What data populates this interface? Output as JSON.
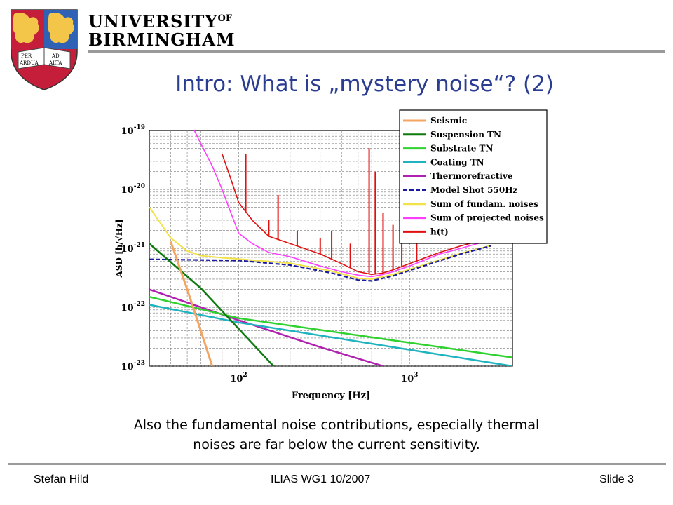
{
  "header": {
    "logo_line1": "UNIVERSITY",
    "logo_of": "OF",
    "logo_line2": "BIRMINGHAM",
    "motto_left_top": "PER",
    "motto_left_bottom": "ARDUA",
    "motto_right_top": "AD",
    "motto_right_bottom": "ALTA"
  },
  "slide": {
    "title": "Intro: What is „mystery noise“? (2)",
    "caption_line1": "Also the fundamental noise contributions, especially thermal",
    "caption_line2": "noises are far below the current sensitivity."
  },
  "footer": {
    "author": "Stefan Hild",
    "event": "ILIAS WG1 10/2007",
    "slide_number": "Slide 3"
  },
  "colors": {
    "title": "#2b3d91",
    "seismic": "#f5a562",
    "suspension": "#0e7a0e",
    "substrate": "#2fd22f",
    "coating": "#1fb3c0",
    "thermorefractive": "#b020b0",
    "shot": "#1a1aa0",
    "sum_fundamental": "#f2e24a",
    "sum_projected": "#ff3dff",
    "ht": "#e01010"
  },
  "chart_data": {
    "type": "line",
    "xlabel": "Frequency [Hz]",
    "ylabel": "ASD [h/√Hz]",
    "x_scale": "log",
    "y_scale": "log",
    "xlim": [
      30,
      4000
    ],
    "ylim": [
      1e-23,
      1e-19
    ],
    "x_ticks": [
      {
        "value": 100,
        "base": "10",
        "exp": "2"
      },
      {
        "value": 1000,
        "base": "10",
        "exp": "3"
      }
    ],
    "y_ticks": [
      {
        "value": 1e-19,
        "base": "10",
        "exp": "-19"
      },
      {
        "value": 1e-20,
        "base": "10",
        "exp": "-20"
      },
      {
        "value": 1e-21,
        "base": "10",
        "exp": "-21"
      },
      {
        "value": 1e-22,
        "base": "10",
        "exp": "-22"
      },
      {
        "value": 1e-23,
        "base": "10",
        "exp": "-23"
      }
    ],
    "grid": true,
    "legend_position": "top-right",
    "series": [
      {
        "name": "Seismic",
        "color": "#f5a562",
        "style": "solid",
        "x": [
          40,
          50,
          60,
          70
        ],
        "y": [
          1.3e-21,
          2e-22,
          4e-23,
          1e-23
        ]
      },
      {
        "name": "Suspension TN",
        "color": "#0e7a0e",
        "style": "solid",
        "x": [
          30,
          60,
          100,
          160
        ],
        "y": [
          1.2e-21,
          2.1e-22,
          4.3e-23,
          1e-23
        ]
      },
      {
        "name": "Substrate TN",
        "color": "#2fd22f",
        "style": "solid",
        "x": [
          30,
          100,
          1000,
          4000
        ],
        "y": [
          1.5e-22,
          6.5e-23,
          2.5e-23,
          1.4e-23
        ]
      },
      {
        "name": "Coating TN",
        "color": "#1fb3c0",
        "style": "solid",
        "x": [
          30,
          100,
          1000,
          4000
        ],
        "y": [
          1.1e-22,
          5.5e-23,
          1.9e-23,
          1e-23
        ]
      },
      {
        "name": "Thermorefractive",
        "color": "#b020b0",
        "style": "solid",
        "x": [
          30,
          100,
          300,
          700
        ],
        "y": [
          2e-22,
          6e-23,
          2.1e-23,
          1e-23
        ]
      },
      {
        "name": "Model Shot 550Hz",
        "color": "#1a1aa0",
        "style": "dashed",
        "x": [
          30,
          100,
          200,
          350,
          500,
          600,
          800,
          1000,
          2000,
          3000
        ],
        "y": [
          6.5e-22,
          6.2e-22,
          5.2e-22,
          3.8e-22,
          2.9e-22,
          2.8e-22,
          3.4e-22,
          4.2e-22,
          8e-22,
          1.1e-21
        ]
      },
      {
        "name": "Sum of fundam. noises",
        "color": "#f2e24a",
        "style": "solid",
        "x": [
          30,
          40,
          50,
          60,
          80,
          100,
          200,
          350,
          500,
          600,
          800,
          1000,
          2000,
          3000
        ],
        "y": [
          5e-21,
          1.5e-21,
          9e-22,
          7.5e-22,
          6.9e-22,
          6.6e-22,
          5.6e-22,
          4.1e-22,
          3.1e-22,
          3e-22,
          3.6e-22,
          4.4e-22,
          8.2e-22,
          1.12e-21
        ]
      },
      {
        "name": "Sum of projected noises",
        "color": "#ff3dff",
        "style": "solid",
        "x": [
          55,
          60,
          70,
          80,
          90,
          100,
          120,
          150,
          200,
          300,
          400,
          500,
          600,
          700,
          800,
          1000,
          1500,
          2000,
          3000
        ],
        "y": [
          1e-19,
          6e-20,
          2.5e-20,
          1e-20,
          4e-21,
          1.8e-21,
          1.2e-21,
          8.5e-22,
          7.2e-22,
          5e-22,
          4e-22,
          3.5e-22,
          3.3e-22,
          3.6e-22,
          4e-22,
          5e-22,
          8e-22,
          1e-21,
          1.4e-21
        ]
      },
      {
        "name": "h(t)",
        "color": "#e01010",
        "style": "solid",
        "x": [
          80,
          90,
          100,
          120,
          150,
          200,
          300,
          400,
          500,
          600,
          700,
          800,
          1000,
          1500,
          2000,
          3000
        ],
        "y": [
          4e-20,
          1.5e-20,
          6e-21,
          3e-21,
          1.6e-21,
          1.2e-21,
          8e-22,
          5.5e-22,
          4e-22,
          3.6e-22,
          3.8e-22,
          4.3e-22,
          5.5e-22,
          8.5e-22,
          1.1e-21,
          1.5e-21
        ],
        "peaks": [
          {
            "x": 110,
            "y": 4e-20
          },
          {
            "x": 150,
            "y": 3e-21
          },
          {
            "x": 170,
            "y": 8e-21
          },
          {
            "x": 220,
            "y": 2e-21
          },
          {
            "x": 300,
            "y": 1.5e-21
          },
          {
            "x": 350,
            "y": 2e-21
          },
          {
            "x": 450,
            "y": 1.2e-21
          },
          {
            "x": 580,
            "y": 5e-20
          },
          {
            "x": 630,
            "y": 2e-20
          },
          {
            "x": 700,
            "y": 4e-21
          },
          {
            "x": 800,
            "y": 2.5e-21
          },
          {
            "x": 900,
            "y": 3e-21
          },
          {
            "x": 1100,
            "y": 2.5e-21
          }
        ]
      }
    ]
  }
}
